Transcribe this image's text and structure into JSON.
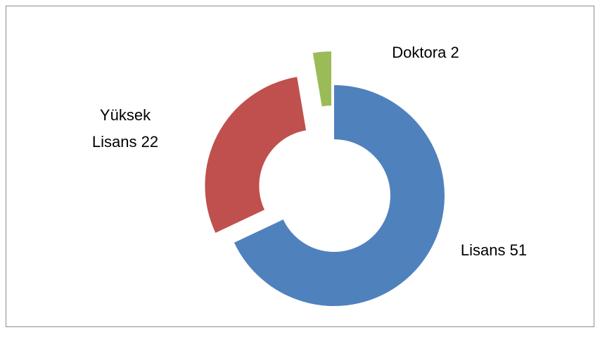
{
  "chart_data": {
    "type": "donut",
    "categories": [
      "Lisans",
      "Yüksek Lisans",
      "Doktora"
    ],
    "values": [
      51,
      22,
      2
    ],
    "colors": [
      "#4f81bd",
      "#c0504d",
      "#9bbb59"
    ]
  }
}
